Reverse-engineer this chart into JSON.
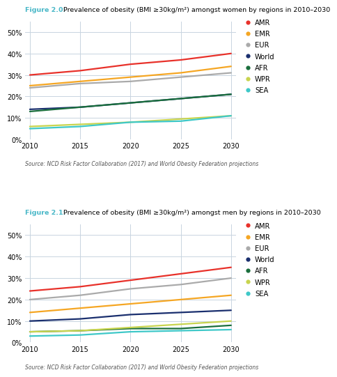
{
  "fig_title_0_bold": "Figure 2.0:",
  "fig_title_0_rest": " Prevalence of obesity (BMI ≥30kg/m²) amongst women by regions in 2010–2030",
  "fig_title_1_bold": "Figure 2.1:",
  "fig_title_1_rest": " Prevalence of obesity (BMI ≥30kg/m²) amongst men by regions in 2010–2030",
  "source_text": "Source: NCD Risk Factor Collaboration (2017) and World Obesity Federation projections",
  "x_ticks": [
    2010,
    2015,
    2020,
    2025,
    2030
  ],
  "ylim": [
    0,
    55
  ],
  "yticks": [
    0,
    10,
    20,
    30,
    40,
    50
  ],
  "ytick_labels": [
    "0%",
    "10%",
    "20%",
    "30%",
    "40%",
    "50%"
  ],
  "regions": [
    "AMR",
    "EMR",
    "EUR",
    "World",
    "AFR",
    "WPR",
    "SEA"
  ],
  "colors": {
    "AMR": "#e8312a",
    "EMR": "#f5a623",
    "EUR": "#aaaaaa",
    "World": "#1a2f6e",
    "AFR": "#1a6e3c",
    "WPR": "#c8d44e",
    "SEA": "#3ec8c8"
  },
  "women_data": {
    "AMR": [
      30,
      32,
      35,
      37,
      40
    ],
    "EMR": [
      25,
      27,
      29,
      31,
      34
    ],
    "EUR": [
      24,
      26,
      27,
      29,
      31
    ],
    "World": [
      14,
      15,
      17,
      19,
      21
    ],
    "AFR": [
      13,
      15,
      17,
      19,
      21
    ],
    "WPR": [
      6,
      7,
      8,
      9.5,
      11
    ],
    "SEA": [
      5,
      6,
      8,
      8.5,
      11
    ]
  },
  "men_data": {
    "AMR": [
      24,
      26,
      29,
      32,
      35
    ],
    "EMR": [
      14,
      16,
      18,
      20,
      22
    ],
    "EUR": [
      20,
      22,
      25,
      27,
      30
    ],
    "World": [
      10,
      11,
      13,
      14,
      15
    ],
    "AFR": [
      5,
      5.5,
      6.5,
      6.5,
      8
    ],
    "WPR": [
      5,
      5.5,
      7,
      8.5,
      10
    ],
    "SEA": [
      3,
      3.5,
      5,
      5.5,
      6
    ]
  },
  "background_color": "#ffffff",
  "plot_bg_color": "#ffffff",
  "title_cyan_color": "#4ab8c8",
  "grid_color": "#c8d4e0",
  "figsize": [
    4.74,
    5.36
  ],
  "dpi": 100
}
